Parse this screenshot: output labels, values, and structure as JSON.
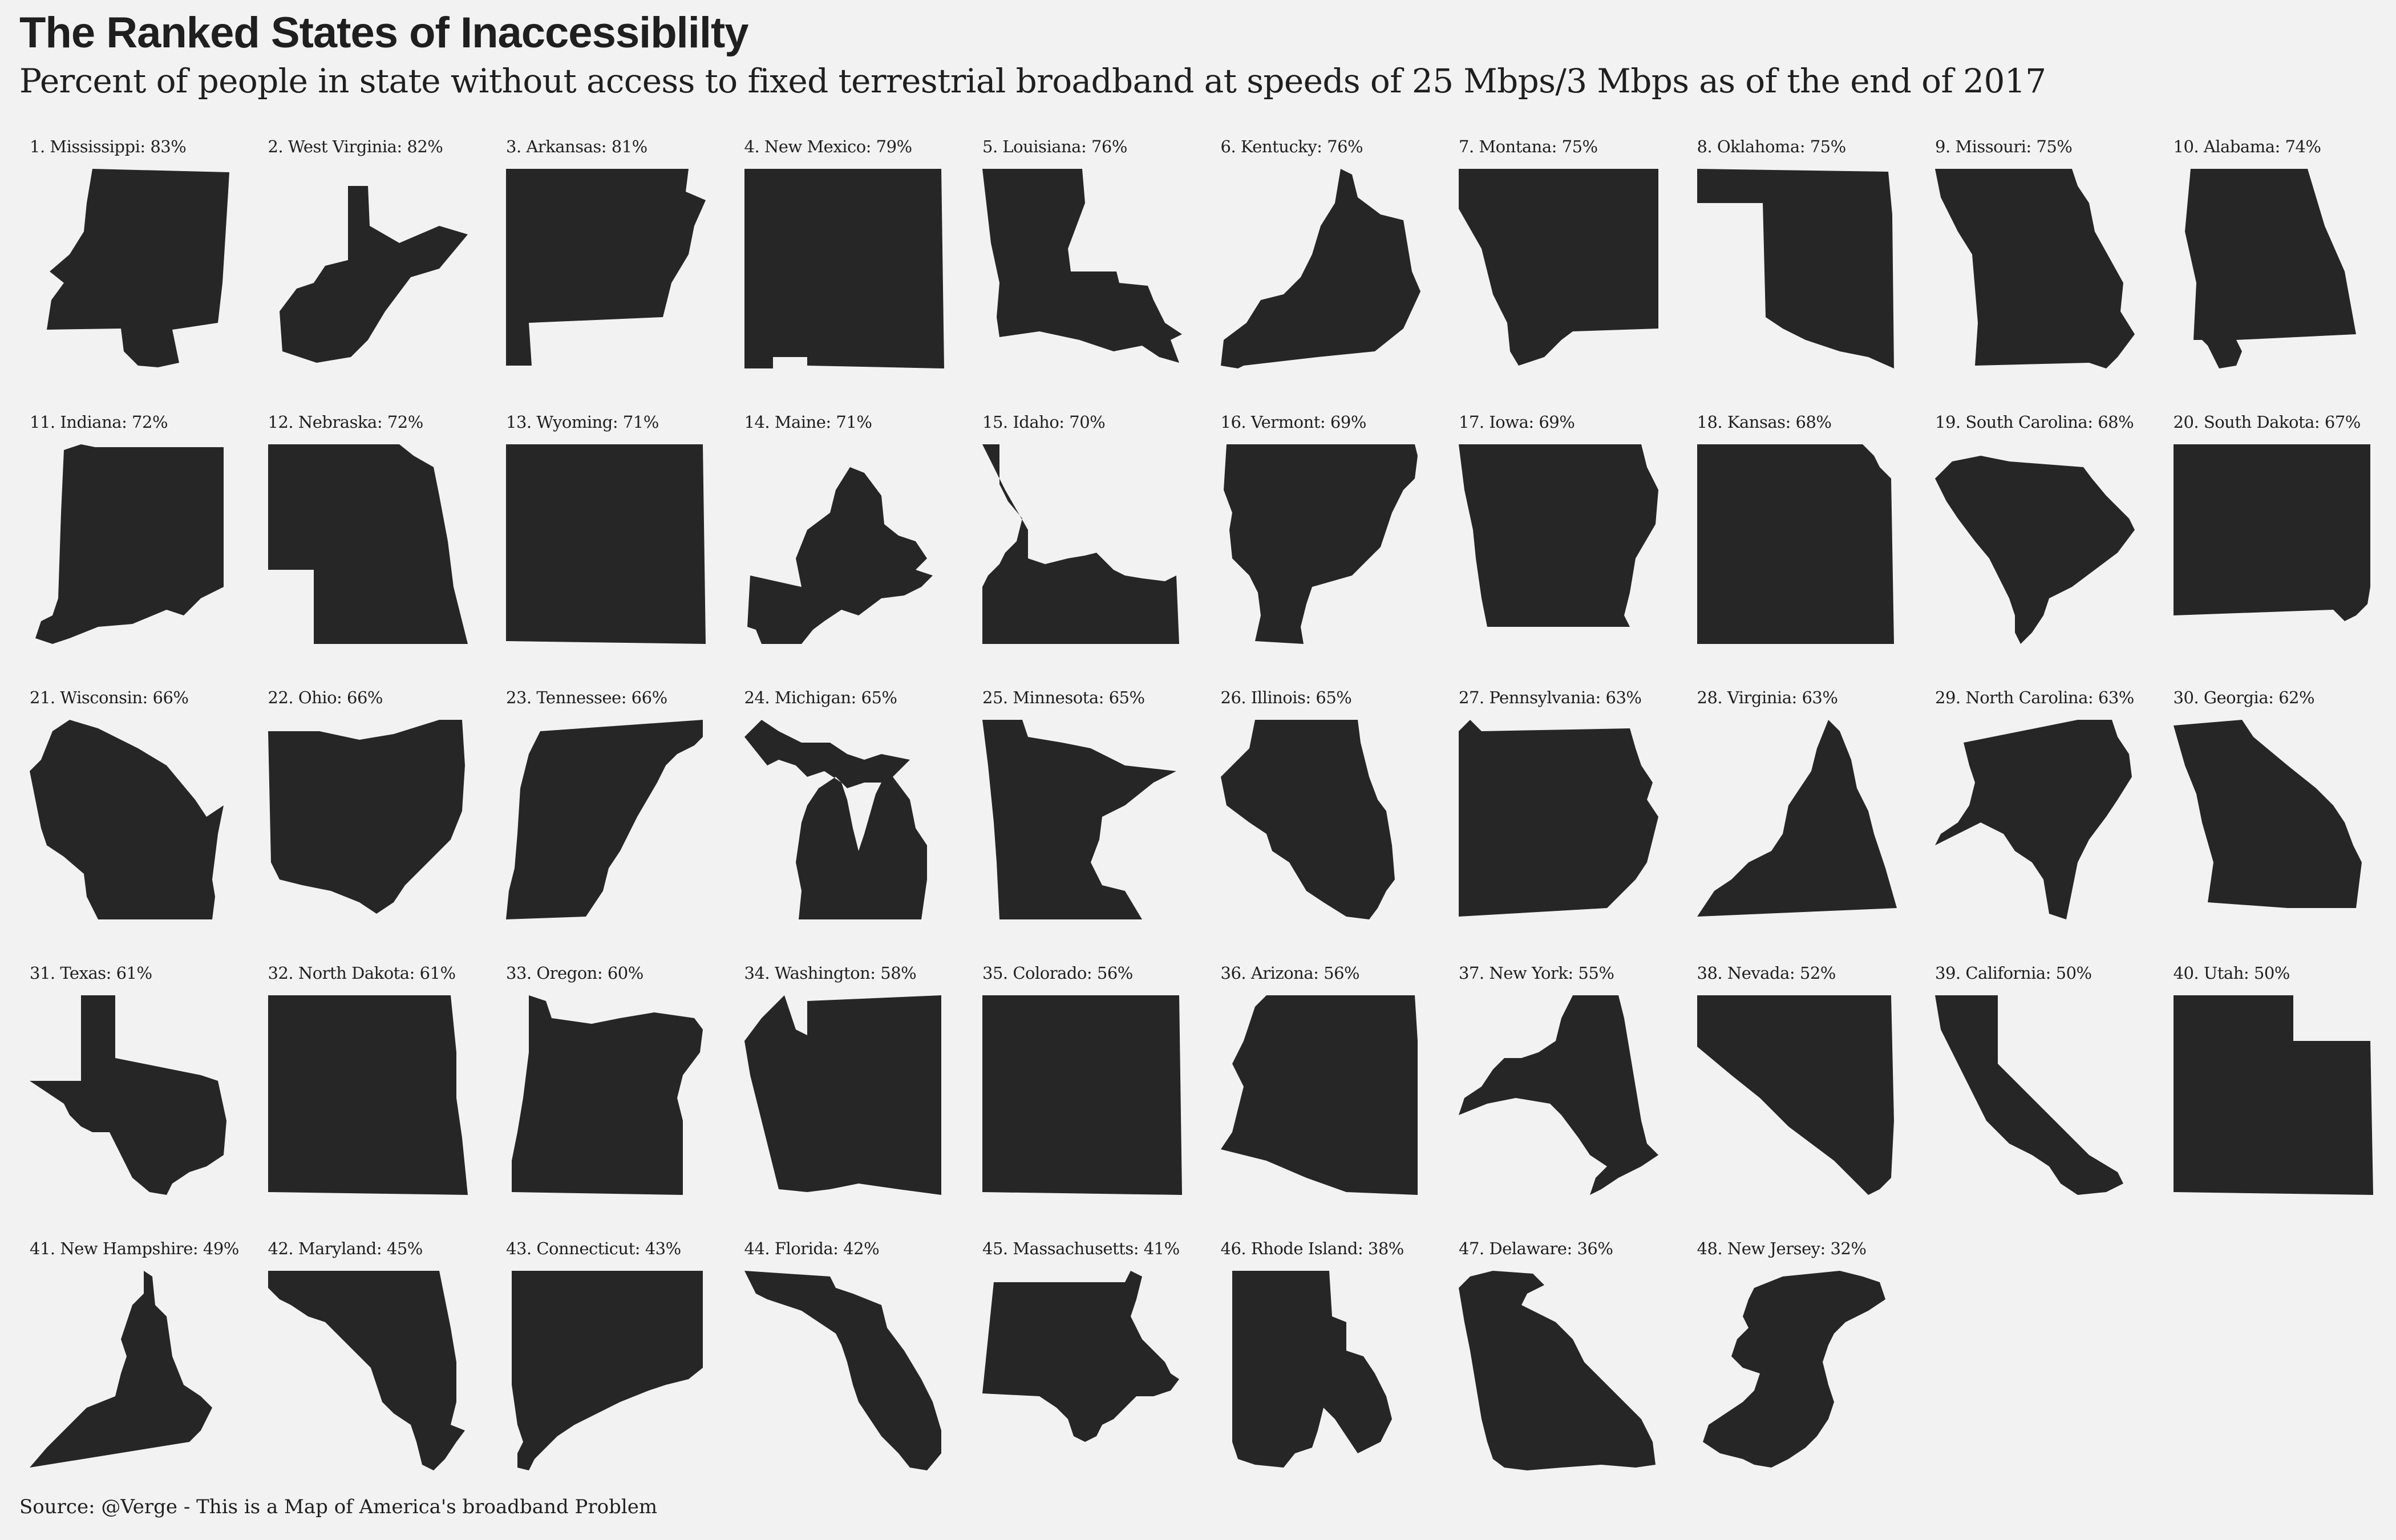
{
  "title": "The Ranked States of Inaccessiblilty",
  "subtitle": "Percent of people in state without access to fixed terrestrial broadband at speeds of 25 Mbps/3 Mbps as of the end of 2017",
  "source": "Source: @Verge - This is a Map of America's broadband Problem",
  "shape_color": "#262626",
  "background_color": "#f2f2f2",
  "states": [
    {
      "rank": 1,
      "name": "Mississippi",
      "percent": 83,
      "label": "1. Mississippi: 83%"
    },
    {
      "rank": 2,
      "name": "West Virginia",
      "percent": 82,
      "label": "2. West Virginia: 82%"
    },
    {
      "rank": 3,
      "name": "Arkansas",
      "percent": 81,
      "label": "3. Arkansas: 81%"
    },
    {
      "rank": 4,
      "name": "New Mexico",
      "percent": 79,
      "label": "4. New Mexico: 79%"
    },
    {
      "rank": 5,
      "name": "Louisiana",
      "percent": 76,
      "label": "5. Louisiana: 76%"
    },
    {
      "rank": 6,
      "name": "Kentucky",
      "percent": 76,
      "label": "6. Kentucky: 76%"
    },
    {
      "rank": 7,
      "name": "Montana",
      "percent": 75,
      "label": "7. Montana: 75%"
    },
    {
      "rank": 8,
      "name": "Oklahoma",
      "percent": 75,
      "label": "8. Oklahoma: 75%"
    },
    {
      "rank": 9,
      "name": "Missouri",
      "percent": 75,
      "label": "9. Missouri: 75%"
    },
    {
      "rank": 10,
      "name": "Alabama",
      "percent": 74,
      "label": "10. Alabama: 74%"
    },
    {
      "rank": 11,
      "name": "Indiana",
      "percent": 72,
      "label": "11. Indiana: 72%"
    },
    {
      "rank": 12,
      "name": "Nebraska",
      "percent": 72,
      "label": "12. Nebraska: 72%"
    },
    {
      "rank": 13,
      "name": "Wyoming",
      "percent": 71,
      "label": "13. Wyoming: 71%"
    },
    {
      "rank": 14,
      "name": "Maine",
      "percent": 71,
      "label": "14. Maine: 71%"
    },
    {
      "rank": 15,
      "name": "Idaho",
      "percent": 70,
      "label": "15. Idaho: 70%"
    },
    {
      "rank": 16,
      "name": "Vermont",
      "percent": 69,
      "label": "16. Vermont: 69%"
    },
    {
      "rank": 17,
      "name": "Iowa",
      "percent": 69,
      "label": "17. Iowa: 69%"
    },
    {
      "rank": 18,
      "name": "Kansas",
      "percent": 68,
      "label": "18. Kansas: 68%"
    },
    {
      "rank": 19,
      "name": "South Carolina",
      "percent": 68,
      "label": "19. South Carolina: 68%"
    },
    {
      "rank": 20,
      "name": "South Dakota",
      "percent": 67,
      "label": "20. South Dakota: 67%"
    },
    {
      "rank": 21,
      "name": "Wisconsin",
      "percent": 66,
      "label": "21. Wisconsin: 66%"
    },
    {
      "rank": 22,
      "name": "Ohio",
      "percent": 66,
      "label": "22. Ohio: 66%"
    },
    {
      "rank": 23,
      "name": "Tennessee",
      "percent": 66,
      "label": "23. Tennessee: 66%"
    },
    {
      "rank": 24,
      "name": "Michigan",
      "percent": 65,
      "label": "24. Michigan: 65%"
    },
    {
      "rank": 25,
      "name": "Minnesota",
      "percent": 65,
      "label": "25. Minnesota: 65%"
    },
    {
      "rank": 26,
      "name": "Illinois",
      "percent": 65,
      "label": "26. Illinois: 65%"
    },
    {
      "rank": 27,
      "name": "Pennsylvania",
      "percent": 63,
      "label": "27. Pennsylvania: 63%"
    },
    {
      "rank": 28,
      "name": "Virginia",
      "percent": 63,
      "label": "28. Virginia: 63%"
    },
    {
      "rank": 29,
      "name": "North Carolina",
      "percent": 63,
      "label": "29. North Carolina: 63%"
    },
    {
      "rank": 30,
      "name": "Georgia",
      "percent": 62,
      "label": "30. Georgia: 62%"
    },
    {
      "rank": 31,
      "name": "Texas",
      "percent": 61,
      "label": "31. Texas: 61%"
    },
    {
      "rank": 32,
      "name": "North Dakota",
      "percent": 61,
      "label": "32. North Dakota: 61%"
    },
    {
      "rank": 33,
      "name": "Oregon",
      "percent": 60,
      "label": "33. Oregon: 60%"
    },
    {
      "rank": 34,
      "name": "Washington",
      "percent": 58,
      "label": "34. Washington: 58%"
    },
    {
      "rank": 35,
      "name": "Colorado",
      "percent": 56,
      "label": "35. Colorado: 56%"
    },
    {
      "rank": 36,
      "name": "Arizona",
      "percent": 56,
      "label": "36. Arizona: 56%"
    },
    {
      "rank": 37,
      "name": "New York",
      "percent": 55,
      "label": "37. New York: 55%"
    },
    {
      "rank": 38,
      "name": "Nevada",
      "percent": 52,
      "label": "38. Nevada: 52%"
    },
    {
      "rank": 39,
      "name": "California",
      "percent": 50,
      "label": "39. California: 50%"
    },
    {
      "rank": 40,
      "name": "Utah",
      "percent": 50,
      "label": "40. Utah: 50%"
    },
    {
      "rank": 41,
      "name": "New Hampshire",
      "percent": 49,
      "label": "41. New Hampshire: 49%"
    },
    {
      "rank": 42,
      "name": "Maryland",
      "percent": 45,
      "label": "42. Maryland: 45%"
    },
    {
      "rank": 43,
      "name": "Connecticut",
      "percent": 43,
      "label": "43. Connecticut: 43%"
    },
    {
      "rank": 44,
      "name": "Florida",
      "percent": 42,
      "label": "44. Florida: 42%"
    },
    {
      "rank": 45,
      "name": "Massachusetts",
      "percent": 41,
      "label": "45. Massachusetts: 41%"
    },
    {
      "rank": 46,
      "name": "Rhode Island",
      "percent": 38,
      "label": "46. Rhode Island: 38%"
    },
    {
      "rank": 47,
      "name": "Delaware",
      "percent": 36,
      "label": "47. Delaware: 36%"
    },
    {
      "rank": 48,
      "name": "New Jersey",
      "percent": 32,
      "label": "48. New Jersey: 32%"
    }
  ]
}
